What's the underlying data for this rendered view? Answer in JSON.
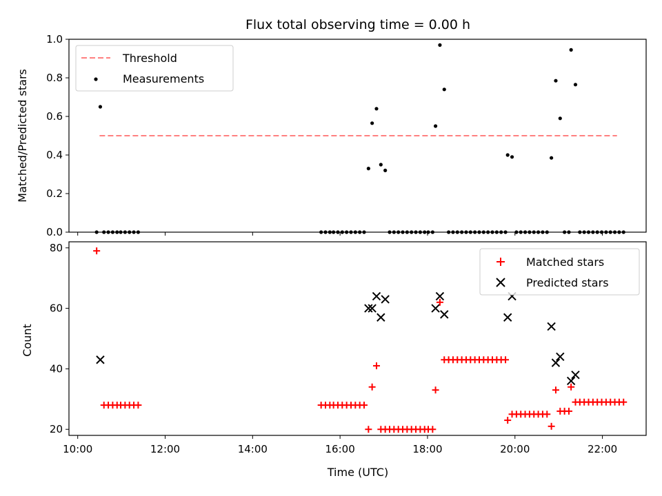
{
  "figure": {
    "title": "Flux total observing time = 0.00 h",
    "xlabel": "Time (UTC)"
  },
  "x_axis": {
    "range": [
      "09:48",
      "23:00"
    ],
    "ticks": [
      "10:00",
      "12:00",
      "14:00",
      "16:00",
      "18:00",
      "20:00",
      "22:00"
    ]
  },
  "chart_data": [
    {
      "type": "scatter",
      "panel": "top",
      "ylabel": "Matched/Predicted stars",
      "ylim": [
        0,
        1.0
      ],
      "yticks": [
        "0.0",
        "0.2",
        "0.4",
        "0.6",
        "0.8",
        "1.0"
      ],
      "grid": false,
      "legend": {
        "position": "top-left"
      },
      "threshold": {
        "name": "Threshold",
        "value": 0.5,
        "x": [
          "10:30",
          "22:20"
        ],
        "color": "#ff7f7f",
        "style": "dashed"
      },
      "series": [
        {
          "name": "Measurements",
          "color": "#000000",
          "marker": "dot",
          "points": [
            [
              "10:26",
              0
            ],
            [
              "10:31",
              0.65
            ],
            [
              "10:36",
              0
            ],
            [
              "10:42",
              0
            ],
            [
              "10:48",
              0
            ],
            [
              "10:54",
              0
            ],
            [
              "10:59",
              0
            ],
            [
              "11:05",
              0
            ],
            [
              "11:11",
              0
            ],
            [
              "11:17",
              0
            ],
            [
              "11:23",
              0
            ],
            [
              "15:34",
              0
            ],
            [
              "15:40",
              0
            ],
            [
              "15:46",
              0
            ],
            [
              "15:51",
              0
            ],
            [
              "15:57",
              0
            ],
            [
              "16:03",
              0
            ],
            [
              "16:09",
              0
            ],
            [
              "16:15",
              0
            ],
            [
              "16:21",
              0
            ],
            [
              "16:27",
              0
            ],
            [
              "16:33",
              0
            ],
            [
              "16:39",
              0.33
            ],
            [
              "16:44",
              0.565
            ],
            [
              "16:50",
              0.64
            ],
            [
              "16:56",
              0.35
            ],
            [
              "17:02",
              0.32
            ],
            [
              "17:08",
              0
            ],
            [
              "17:14",
              0
            ],
            [
              "17:20",
              0
            ],
            [
              "17:26",
              0
            ],
            [
              "17:32",
              0
            ],
            [
              "17:38",
              0
            ],
            [
              "17:44",
              0
            ],
            [
              "17:50",
              0
            ],
            [
              "17:56",
              0
            ],
            [
              "18:01",
              0
            ],
            [
              "18:07",
              0
            ],
            [
              "18:11",
              0.55
            ],
            [
              "18:17",
              0.97
            ],
            [
              "18:23",
              0.74
            ],
            [
              "18:29",
              0
            ],
            [
              "18:35",
              0
            ],
            [
              "18:41",
              0
            ],
            [
              "18:47",
              0
            ],
            [
              "18:53",
              0
            ],
            [
              "18:59",
              0
            ],
            [
              "19:05",
              0
            ],
            [
              "19:11",
              0
            ],
            [
              "19:17",
              0
            ],
            [
              "19:23",
              0
            ],
            [
              "19:29",
              0
            ],
            [
              "19:35",
              0
            ],
            [
              "19:41",
              0
            ],
            [
              "19:47",
              0
            ],
            [
              "19:50",
              0.4
            ],
            [
              "19:56",
              0.39
            ],
            [
              "20:02",
              0
            ],
            [
              "20:08",
              0
            ],
            [
              "20:14",
              0
            ],
            [
              "20:20",
              0
            ],
            [
              "20:26",
              0
            ],
            [
              "20:32",
              0
            ],
            [
              "20:38",
              0
            ],
            [
              "20:44",
              0
            ],
            [
              "20:50",
              0.385
            ],
            [
              "20:56",
              0.785
            ],
            [
              "21:02",
              0.59
            ],
            [
              "21:08",
              0
            ],
            [
              "21:14",
              0
            ],
            [
              "21:17",
              0.945
            ],
            [
              "21:23",
              0.765
            ],
            [
              "21:29",
              0
            ],
            [
              "21:35",
              0
            ],
            [
              "21:41",
              0
            ],
            [
              "21:47",
              0
            ],
            [
              "21:53",
              0
            ],
            [
              "21:59",
              0
            ],
            [
              "22:05",
              0
            ],
            [
              "22:11",
              0
            ],
            [
              "22:17",
              0
            ],
            [
              "22:23",
              0
            ],
            [
              "22:29",
              0
            ]
          ]
        }
      ]
    },
    {
      "type": "scatter",
      "panel": "bottom",
      "ylabel": "Count",
      "ylim": [
        18,
        82
      ],
      "yticks": [
        "20",
        "40",
        "60",
        "80"
      ],
      "grid": false,
      "legend": {
        "position": "top-right"
      },
      "series": [
        {
          "name": "Matched stars",
          "color": "#ff0000",
          "marker": "plus",
          "points": [
            [
              "10:26",
              79
            ],
            [
              "10:36",
              28
            ],
            [
              "10:42",
              28
            ],
            [
              "10:48",
              28
            ],
            [
              "10:54",
              28
            ],
            [
              "10:59",
              28
            ],
            [
              "11:05",
              28
            ],
            [
              "11:11",
              28
            ],
            [
              "11:17",
              28
            ],
            [
              "11:23",
              28
            ],
            [
              "15:34",
              28
            ],
            [
              "15:40",
              28
            ],
            [
              "15:46",
              28
            ],
            [
              "15:51",
              28
            ],
            [
              "15:57",
              28
            ],
            [
              "16:03",
              28
            ],
            [
              "16:09",
              28
            ],
            [
              "16:15",
              28
            ],
            [
              "16:21",
              28
            ],
            [
              "16:27",
              28
            ],
            [
              "16:33",
              28
            ],
            [
              "16:39",
              20
            ],
            [
              "16:44",
              34
            ],
            [
              "16:50",
              41
            ],
            [
              "16:56",
              20
            ],
            [
              "17:02",
              20
            ],
            [
              "17:08",
              20
            ],
            [
              "17:14",
              20
            ],
            [
              "17:20",
              20
            ],
            [
              "17:26",
              20
            ],
            [
              "17:32",
              20
            ],
            [
              "17:38",
              20
            ],
            [
              "17:44",
              20
            ],
            [
              "17:50",
              20
            ],
            [
              "17:56",
              20
            ],
            [
              "18:01",
              20
            ],
            [
              "18:07",
              20
            ],
            [
              "18:11",
              33
            ],
            [
              "18:17",
              62
            ],
            [
              "18:23",
              43
            ],
            [
              "18:29",
              43
            ],
            [
              "18:35",
              43
            ],
            [
              "18:41",
              43
            ],
            [
              "18:47",
              43
            ],
            [
              "18:53",
              43
            ],
            [
              "18:59",
              43
            ],
            [
              "19:05",
              43
            ],
            [
              "19:11",
              43
            ],
            [
              "19:17",
              43
            ],
            [
              "19:23",
              43
            ],
            [
              "19:29",
              43
            ],
            [
              "19:35",
              43
            ],
            [
              "19:41",
              43
            ],
            [
              "19:47",
              43
            ],
            [
              "19:50",
              23
            ],
            [
              "19:56",
              25
            ],
            [
              "20:02",
              25
            ],
            [
              "20:08",
              25
            ],
            [
              "20:14",
              25
            ],
            [
              "20:20",
              25
            ],
            [
              "20:26",
              25
            ],
            [
              "20:32",
              25
            ],
            [
              "20:38",
              25
            ],
            [
              "20:44",
              25
            ],
            [
              "20:50",
              21
            ],
            [
              "20:56",
              33
            ],
            [
              "21:02",
              26
            ],
            [
              "21:08",
              26
            ],
            [
              "21:14",
              26
            ],
            [
              "21:17",
              34
            ],
            [
              "21:23",
              29
            ],
            [
              "21:29",
              29
            ],
            [
              "21:35",
              29
            ],
            [
              "21:41",
              29
            ],
            [
              "21:47",
              29
            ],
            [
              "21:53",
              29
            ],
            [
              "21:59",
              29
            ],
            [
              "22:05",
              29
            ],
            [
              "22:11",
              29
            ],
            [
              "22:17",
              29
            ],
            [
              "22:23",
              29
            ],
            [
              "22:29",
              29
            ]
          ]
        },
        {
          "name": "Predicted stars",
          "color": "#000000",
          "marker": "x",
          "points": [
            [
              "10:31",
              43
            ],
            [
              "16:39",
              60
            ],
            [
              "16:44",
              60
            ],
            [
              "16:50",
              64
            ],
            [
              "16:56",
              57
            ],
            [
              "17:02",
              63
            ],
            [
              "18:11",
              60
            ],
            [
              "18:17",
              64
            ],
            [
              "18:23",
              58
            ],
            [
              "19:50",
              57
            ],
            [
              "19:56",
              64
            ],
            [
              "20:50",
              54
            ],
            [
              "20:56",
              42
            ],
            [
              "21:02",
              44
            ],
            [
              "21:17",
              36
            ],
            [
              "21:23",
              38
            ]
          ]
        }
      ]
    }
  ]
}
